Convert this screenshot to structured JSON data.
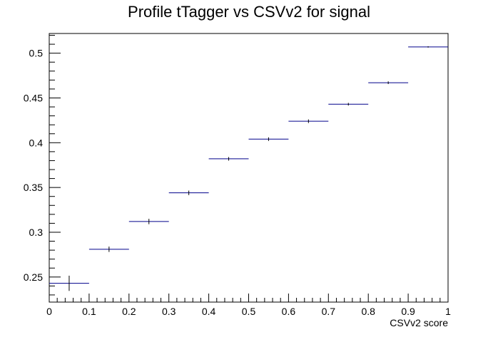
{
  "chart_data": {
    "type": "scatter",
    "style": "profile-histogram",
    "title": "Profile tTagger vs CSVv2 for signal",
    "xlabel": "CSVv2 score",
    "ylabel": "",
    "xlim": [
      0,
      1
    ],
    "ylim": [
      0.222,
      0.522
    ],
    "x_ticks": [
      0,
      0.1,
      0.2,
      0.3,
      0.4,
      0.5,
      0.6,
      0.7,
      0.8,
      0.9,
      1
    ],
    "x_tick_labels": [
      "0",
      "0.1",
      "0.2",
      "0.3",
      "0.4",
      "0.5",
      "0.6",
      "0.7",
      "0.8",
      "0.9",
      "1"
    ],
    "y_ticks": [
      0.25,
      0.3,
      0.35,
      0.4,
      0.45,
      0.5
    ],
    "y_tick_labels": [
      "0.25",
      "0.3",
      "0.35",
      "0.4",
      "0.45",
      "0.5"
    ],
    "grid": false,
    "legend": "none",
    "series": [
      {
        "bin_width": 0.1,
        "x": [
          0.05,
          0.15,
          0.25,
          0.35,
          0.45,
          0.55,
          0.65,
          0.75,
          0.85,
          0.95
        ],
        "y": [
          0.243,
          0.281,
          0.312,
          0.344,
          0.382,
          0.404,
          0.424,
          0.443,
          0.467,
          0.507
        ],
        "yerr": [
          0.0085,
          0.003,
          0.003,
          0.0025,
          0.002,
          0.002,
          0.002,
          0.0015,
          0.0015,
          0.0007
        ]
      }
    ],
    "colors": {
      "marker": "#00008b",
      "axis": "#000000"
    }
  }
}
